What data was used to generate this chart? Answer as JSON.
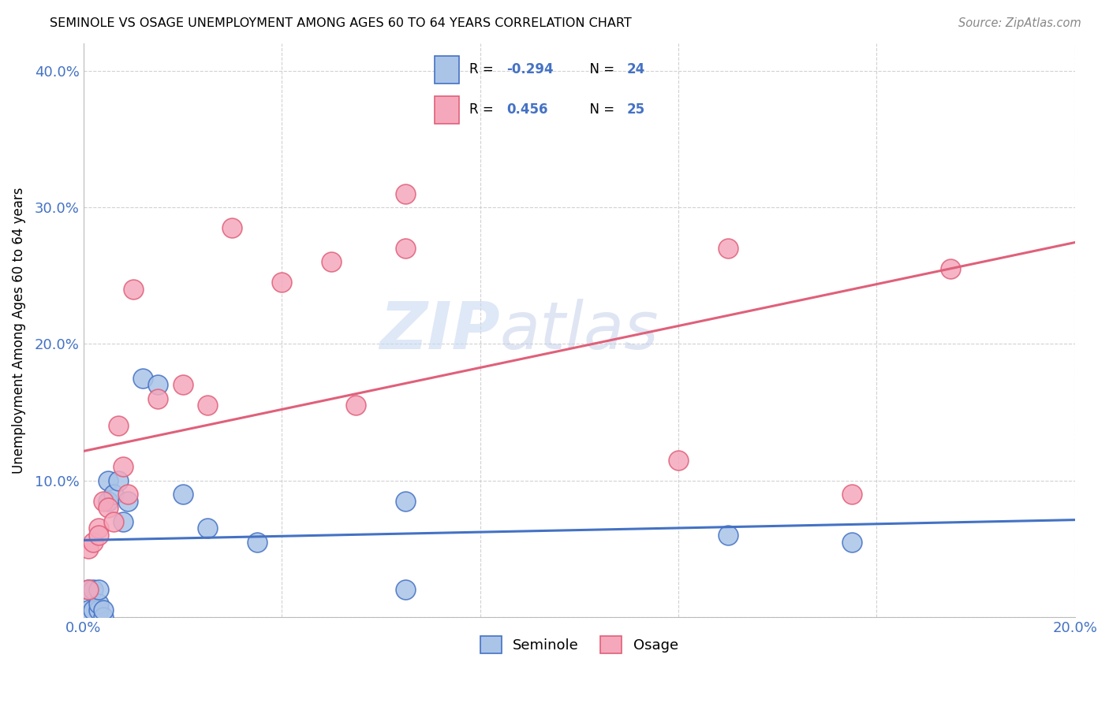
{
  "title": "SEMINOLE VS OSAGE UNEMPLOYMENT AMONG AGES 60 TO 64 YEARS CORRELATION CHART",
  "source": "Source: ZipAtlas.com",
  "ylabel": "Unemployment Among Ages 60 to 64 years",
  "xlim": [
    0.0,
    0.2
  ],
  "ylim": [
    0.0,
    0.42
  ],
  "xticks": [
    0.0,
    0.04,
    0.08,
    0.12,
    0.16,
    0.2
  ],
  "yticks": [
    0.0,
    0.1,
    0.2,
    0.3,
    0.4
  ],
  "legend_r_seminole": "-0.294",
  "legend_n_seminole": "24",
  "legend_r_osage": "0.456",
  "legend_n_osage": "25",
  "seminole_color": "#aac4e8",
  "osage_color": "#f5a8bc",
  "seminole_line_color": "#4472c4",
  "osage_line_color": "#e0607a",
  "tick_color": "#4472c4",
  "grid_color": "#cccccc",
  "seminole_x": [
    0.001,
    0.001,
    0.002,
    0.002,
    0.003,
    0.003,
    0.003,
    0.004,
    0.004,
    0.005,
    0.005,
    0.006,
    0.007,
    0.008,
    0.009,
    0.012,
    0.015,
    0.02,
    0.025,
    0.035,
    0.065,
    0.065,
    0.13,
    0.155
  ],
  "seminole_y": [
    0.005,
    0.02,
    0.005,
    0.02,
    0.005,
    0.01,
    0.02,
    0.0,
    0.005,
    0.085,
    0.1,
    0.09,
    0.1,
    0.07,
    0.085,
    0.175,
    0.17,
    0.09,
    0.065,
    0.055,
    0.085,
    0.02,
    0.06,
    0.055
  ],
  "osage_x": [
    0.001,
    0.001,
    0.002,
    0.003,
    0.003,
    0.004,
    0.005,
    0.006,
    0.007,
    0.008,
    0.009,
    0.01,
    0.015,
    0.02,
    0.025,
    0.03,
    0.04,
    0.05,
    0.055,
    0.065,
    0.065,
    0.12,
    0.13,
    0.155,
    0.175
  ],
  "osage_y": [
    0.02,
    0.05,
    0.055,
    0.065,
    0.06,
    0.085,
    0.08,
    0.07,
    0.14,
    0.11,
    0.09,
    0.24,
    0.16,
    0.17,
    0.155,
    0.285,
    0.245,
    0.26,
    0.155,
    0.27,
    0.31,
    0.115,
    0.27,
    0.09,
    0.255
  ],
  "watermark_zip": "ZIP",
  "watermark_atlas": "atlas",
  "watermark_color_zip": "#c5d8f0",
  "watermark_color_atlas": "#c5d0e8"
}
